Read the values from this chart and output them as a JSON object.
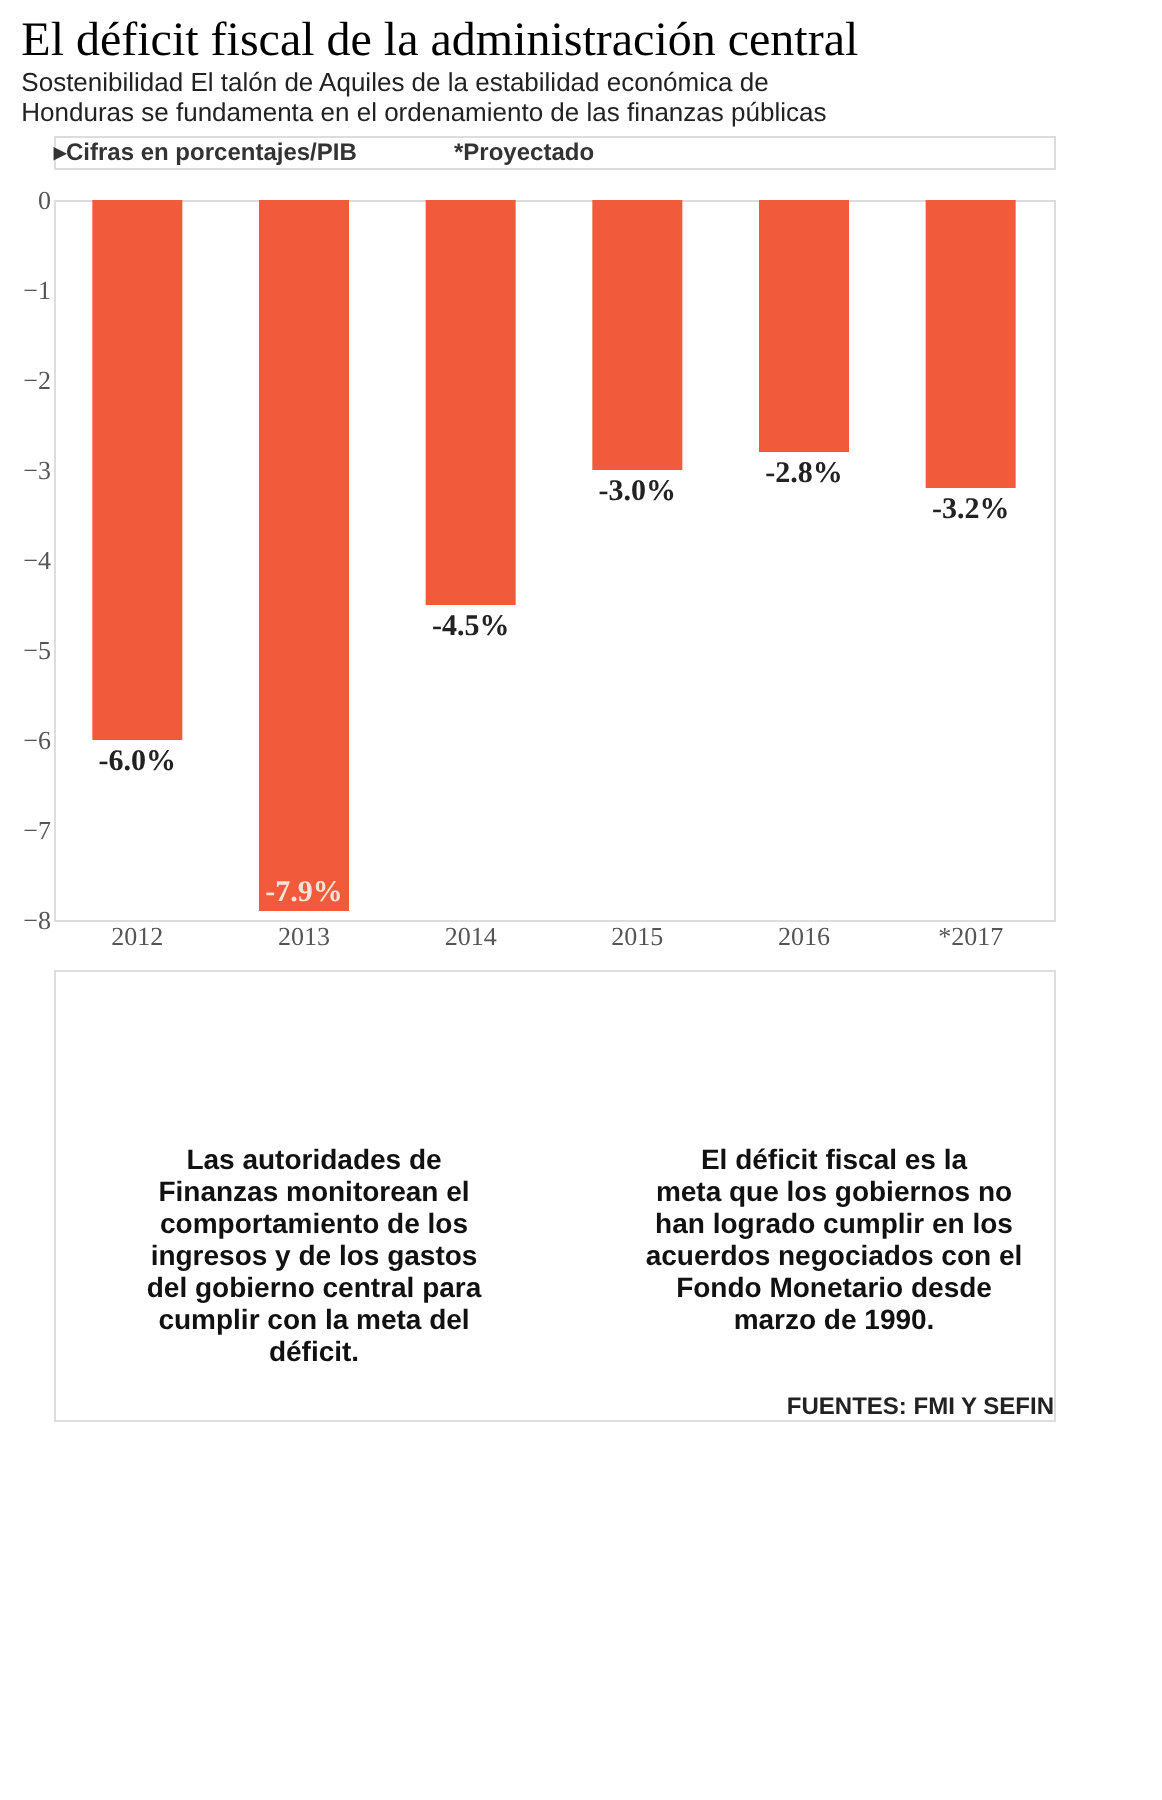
{
  "chart_data": {
    "type": "bar",
    "title": "El déficit fiscal de la administración central",
    "subtitle": "Sostenibilidad El talón de Aquiles de la estabilidad económica de Honduras se fundamenta en el ordenamiento de las finanzas públicas",
    "categories": [
      "2012",
      "2013",
      "2014",
      "2015",
      "2016",
      "*2017"
    ],
    "values": [
      -6.0,
      -7.9,
      -4.5,
      -3.0,
      -2.8,
      -3.2
    ],
    "value_labels": [
      "-6.0%",
      "-7.9%",
      "-4.5%",
      "-3.0%",
      "-2.8%",
      "-3.2%"
    ],
    "color": "#f15a3a",
    "ylim": [
      -8,
      0
    ],
    "yticks": [
      -8,
      -7,
      -6,
      -5,
      -4,
      -3,
      -2,
      -1,
      0
    ],
    "grid": false,
    "annotations": [
      "▸Cifras en porcentajes/PIB",
      "*Proyectado",
      "Las autoridades de Finanzas monitorean el comportamiento de los ingresos y de los gastos del gobierno central para cumplir con la meta del déficit.",
      "El déficit fiscal es la meta que los gobiernos no han logrado cumplir en los acuerdos negociados con el Fondo Monetario desde marzo de 1990.",
      "FUENTES: FMI Y SEFIN"
    ]
  }
}
